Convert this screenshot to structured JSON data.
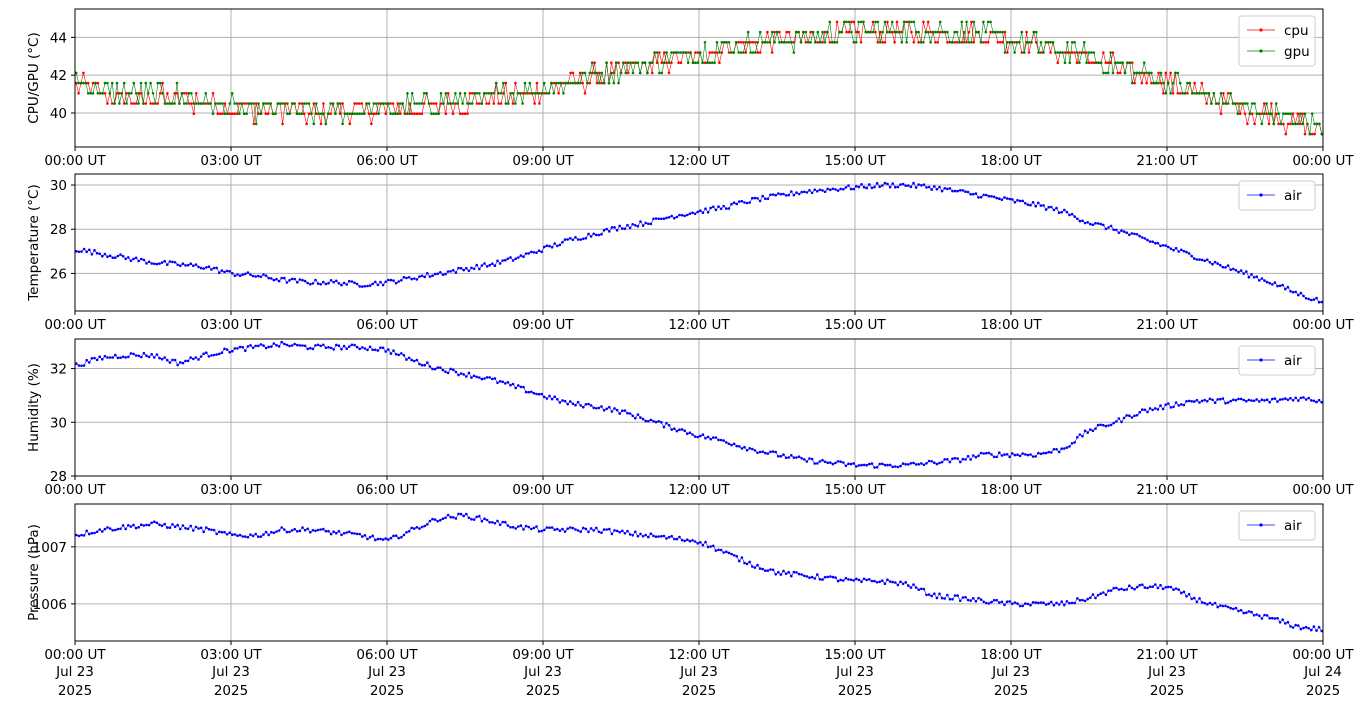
{
  "chart_data": [
    {
      "type": "line",
      "ylabel": "CPU/GPU (°C)",
      "ylim": [
        38.2,
        45.5
      ],
      "yticks": [
        40,
        42,
        44
      ],
      "xlim": [
        0,
        24
      ],
      "grid": true,
      "legend": "top-right",
      "x_tick_labels": [
        "00:00 UT",
        "03:00 UT",
        "06:00 UT",
        "09:00 UT",
        "12:00 UT",
        "15:00 UT",
        "18:00 UT",
        "21:00 UT",
        "00:00 UT"
      ],
      "series": [
        {
          "name": "cpu",
          "color": "#ff0000",
          "x": [
            0,
            0.5,
            1,
            1.5,
            2,
            2.5,
            3,
            3.5,
            4,
            4.5,
            5,
            5.5,
            6,
            6.5,
            7,
            7.5,
            8,
            8.5,
            9,
            9.5,
            10,
            10.5,
            11,
            11.5,
            12,
            12.5,
            13,
            13.5,
            14,
            14.5,
            15,
            15.5,
            16,
            16.5,
            17,
            17.5,
            18,
            18.5,
            19,
            19.5,
            20,
            20.5,
            21,
            21.5,
            22,
            22.5,
            23,
            23.5,
            24
          ],
          "values": [
            41.6,
            41.0,
            40.8,
            40.8,
            40.8,
            40.5,
            40.3,
            40.2,
            40.1,
            40.0,
            40.0,
            40.1,
            40.2,
            40.3,
            40.4,
            40.6,
            40.8,
            41.0,
            41.2,
            41.6,
            41.9,
            42.2,
            42.5,
            42.8,
            43.1,
            43.4,
            43.6,
            43.8,
            43.9,
            44.1,
            44.2,
            44.3,
            44.3,
            44.3,
            44.2,
            44.0,
            43.8,
            43.5,
            43.2,
            42.9,
            42.5,
            42.0,
            41.6,
            41.1,
            40.6,
            40.2,
            39.9,
            39.4,
            39.0
          ]
        },
        {
          "name": "gpu",
          "color": "#008000",
          "x": [
            0,
            0.5,
            1,
            1.5,
            2,
            2.5,
            3,
            3.5,
            4,
            4.5,
            5,
            5.5,
            6,
            6.5,
            7,
            7.5,
            8,
            8.5,
            9,
            9.5,
            10,
            10.5,
            11,
            11.5,
            12,
            12.5,
            13,
            13.5,
            14,
            14.5,
            15,
            15.5,
            16,
            16.5,
            17,
            17.5,
            18,
            18.5,
            19,
            19.5,
            20,
            20.5,
            21,
            21.5,
            22,
            22.5,
            23,
            23.5,
            24
          ],
          "values": [
            41.8,
            41.2,
            41.0,
            41.0,
            40.9,
            40.5,
            40.3,
            40.2,
            40.1,
            40.0,
            40.0,
            40.2,
            40.3,
            40.4,
            40.5,
            40.7,
            40.9,
            41.1,
            41.3,
            41.7,
            42.0,
            42.3,
            42.6,
            42.9,
            43.2,
            43.5,
            43.7,
            43.9,
            44.0,
            44.2,
            44.3,
            44.4,
            44.4,
            44.4,
            44.3,
            44.1,
            43.9,
            43.6,
            43.3,
            43.0,
            42.6,
            42.1,
            41.7,
            41.2,
            40.7,
            40.3,
            40.0,
            39.6,
            39.2
          ]
        }
      ]
    },
    {
      "type": "line",
      "ylabel": "Temperature (°C)",
      "ylim": [
        24.3,
        30.5
      ],
      "yticks": [
        26,
        28,
        30
      ],
      "xlim": [
        0,
        24
      ],
      "grid": true,
      "legend": "top-right",
      "x_tick_labels": [
        "00:00 UT",
        "03:00 UT",
        "06:00 UT",
        "09:00 UT",
        "12:00 UT",
        "15:00 UT",
        "18:00 UT",
        "21:00 UT",
        "00:00 UT"
      ],
      "series": [
        {
          "name": "air",
          "color": "#0000ff",
          "x": [
            0,
            0.5,
            1,
            1.5,
            2,
            2.5,
            3,
            3.5,
            4,
            4.5,
            5,
            5.5,
            6,
            6.5,
            7,
            7.5,
            8,
            8.5,
            9,
            9.5,
            10,
            10.5,
            11,
            11.5,
            12,
            12.5,
            13,
            13.5,
            14,
            14.5,
            15,
            15.5,
            16,
            16.5,
            17,
            17.5,
            18,
            18.5,
            19,
            19.5,
            20,
            20.5,
            21,
            21.5,
            22,
            22.5,
            23,
            23.5,
            24
          ],
          "values": [
            27.1,
            26.9,
            26.7,
            26.5,
            26.4,
            26.3,
            26.0,
            25.9,
            25.7,
            25.6,
            25.6,
            25.5,
            25.6,
            25.8,
            26.0,
            26.2,
            26.4,
            26.7,
            27.1,
            27.5,
            27.8,
            28.1,
            28.3,
            28.6,
            28.8,
            29.0,
            29.3,
            29.5,
            29.7,
            29.8,
            29.9,
            30.0,
            30.0,
            29.9,
            29.7,
            29.5,
            29.3,
            29.1,
            28.8,
            28.3,
            28.0,
            27.6,
            27.2,
            26.8,
            26.4,
            26.0,
            25.6,
            25.1,
            24.7
          ]
        }
      ]
    },
    {
      "type": "line",
      "ylabel": "Humidity (%)",
      "ylim": [
        28.0,
        33.1
      ],
      "yticks": [
        28,
        30,
        32
      ],
      "xlim": [
        0,
        24
      ],
      "grid": true,
      "legend": "top-right",
      "x_tick_labels": [
        "00:00 UT",
        "03:00 UT",
        "06:00 UT",
        "09:00 UT",
        "12:00 UT",
        "15:00 UT",
        "18:00 UT",
        "21:00 UT",
        "00:00 UT"
      ],
      "series": [
        {
          "name": "air",
          "color": "#0000ff",
          "x": [
            0,
            0.5,
            1,
            1.5,
            2,
            2.5,
            3,
            3.5,
            4,
            4.5,
            5,
            5.5,
            6,
            6.5,
            7,
            7.5,
            8,
            8.5,
            9,
            9.5,
            10,
            10.5,
            11,
            11.5,
            12,
            12.5,
            13,
            13.5,
            14,
            14.5,
            15,
            15.5,
            16,
            16.5,
            17,
            17.5,
            18,
            18.5,
            19,
            19.5,
            20,
            20.5,
            21,
            21.5,
            22,
            22.5,
            23,
            23.5,
            24
          ],
          "values": [
            32.1,
            32.4,
            32.5,
            32.5,
            32.2,
            32.5,
            32.7,
            32.8,
            32.9,
            32.8,
            32.8,
            32.8,
            32.7,
            32.3,
            32.0,
            31.8,
            31.6,
            31.3,
            31.0,
            30.7,
            30.6,
            30.4,
            30.1,
            29.8,
            29.5,
            29.3,
            29.0,
            28.8,
            28.6,
            28.5,
            28.4,
            28.4,
            28.4,
            28.5,
            28.6,
            28.8,
            28.8,
            28.8,
            29.0,
            29.7,
            30.0,
            30.4,
            30.6,
            30.8,
            30.8,
            30.8,
            30.8,
            30.9,
            30.8
          ]
        }
      ]
    },
    {
      "type": "line",
      "ylabel": "Pressure (hPa)",
      "ylim": [
        1005.35,
        1007.75
      ],
      "yticks": [
        1006,
        1007
      ],
      "xlim": [
        0,
        24
      ],
      "grid": true,
      "legend": "top-right",
      "x_tick_labels": [
        "00:00 UT",
        "03:00 UT",
        "06:00 UT",
        "09:00 UT",
        "12:00 UT",
        "15:00 UT",
        "18:00 UT",
        "21:00 UT",
        "00:00 UT"
      ],
      "x_tick_dates": [
        "Jul 23",
        "Jul 23",
        "Jul 23",
        "Jul 23",
        "Jul 23",
        "Jul 23",
        "Jul 23",
        "Jul 23",
        "Jul 24"
      ],
      "x_tick_years": [
        "2025",
        "2025",
        "2025",
        "2025",
        "2025",
        "2025",
        "2025",
        "2025",
        "2025"
      ],
      "series": [
        {
          "name": "air",
          "color": "#0000ff",
          "x": [
            0,
            0.5,
            1,
            1.5,
            2,
            2.5,
            3,
            3.5,
            4,
            4.5,
            5,
            5.5,
            6,
            6.5,
            7,
            7.5,
            8,
            8.5,
            9,
            9.5,
            10,
            10.5,
            11,
            11.5,
            12,
            12.5,
            13,
            13.5,
            14,
            14.5,
            15,
            15.5,
            16,
            16.5,
            17,
            17.5,
            18,
            18.5,
            19,
            19.5,
            20,
            20.5,
            21,
            21.5,
            22,
            22.5,
            23,
            23.5,
            24
          ],
          "values": [
            1007.2,
            1007.3,
            1007.35,
            1007.4,
            1007.35,
            1007.3,
            1007.2,
            1007.2,
            1007.3,
            1007.3,
            1007.25,
            1007.2,
            1007.1,
            1007.3,
            1007.5,
            1007.55,
            1007.45,
            1007.35,
            1007.3,
            1007.3,
            1007.3,
            1007.25,
            1007.2,
            1007.15,
            1007.1,
            1006.9,
            1006.7,
            1006.55,
            1006.5,
            1006.45,
            1006.4,
            1006.4,
            1006.35,
            1006.15,
            1006.1,
            1006.05,
            1006.0,
            1006.0,
            1006.0,
            1006.1,
            1006.25,
            1006.3,
            1006.3,
            1006.1,
            1005.95,
            1005.85,
            1005.75,
            1005.6,
            1005.55
          ]
        }
      ]
    }
  ]
}
